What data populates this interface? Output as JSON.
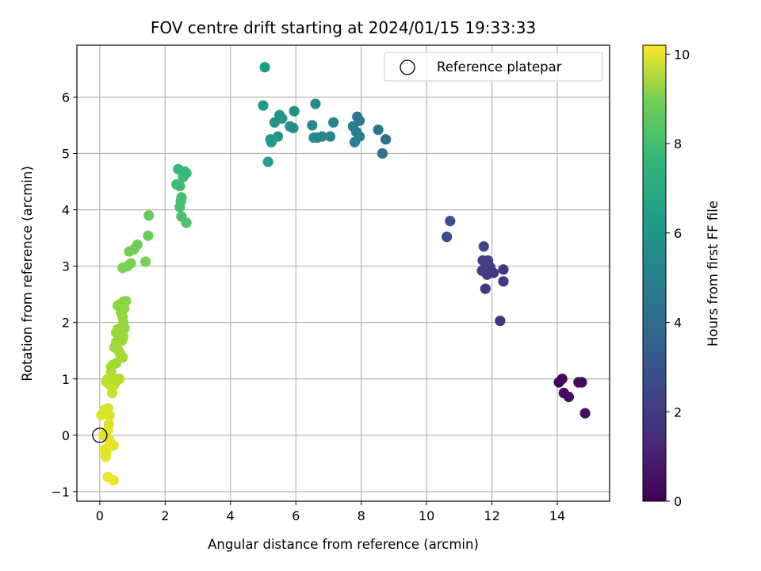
{
  "chart_data": {
    "type": "scatter",
    "title": "FOV centre drift starting at 2024/01/15 19:33:33",
    "xlabel": "Angular distance from reference (arcmin)",
    "ylabel": "Rotation from reference (arcmin)",
    "xlim": [
      -0.7,
      15.6
    ],
    "ylim": [
      -1.17,
      6.92
    ],
    "xticks": [
      0,
      2,
      4,
      6,
      8,
      10,
      12,
      14
    ],
    "yticks": [
      -1,
      0,
      1,
      2,
      3,
      4,
      5,
      6
    ],
    "grid": true,
    "legend": {
      "position": "top-right",
      "entries": [
        "Reference platepar"
      ]
    },
    "reference_point": {
      "x": 0,
      "y": 0
    },
    "colorbar": {
      "label": "Hours from first FF file",
      "range": [
        0,
        10.2
      ],
      "ticks": [
        0,
        2,
        4,
        6,
        8,
        10
      ],
      "colormap": "viridis"
    },
    "points": [
      {
        "x": 14.05,
        "y": 0.94,
        "c": 0.1
      },
      {
        "x": 14.15,
        "y": 1.0,
        "c": 0.15
      },
      {
        "x": 14.65,
        "y": 0.94,
        "c": 0.2
      },
      {
        "x": 14.75,
        "y": 0.94,
        "c": 0.25
      },
      {
        "x": 14.2,
        "y": 0.75,
        "c": 0.3
      },
      {
        "x": 14.35,
        "y": 0.68,
        "c": 0.35
      },
      {
        "x": 14.85,
        "y": 0.39,
        "c": 0.4
      },
      {
        "x": 12.25,
        "y": 2.03,
        "c": 1.5
      },
      {
        "x": 12.35,
        "y": 2.73,
        "c": 1.6
      },
      {
        "x": 12.35,
        "y": 2.94,
        "c": 1.65
      },
      {
        "x": 12.05,
        "y": 2.88,
        "c": 1.7
      },
      {
        "x": 11.8,
        "y": 2.6,
        "c": 1.75
      },
      {
        "x": 11.85,
        "y": 2.85,
        "c": 1.8
      },
      {
        "x": 11.7,
        "y": 2.92,
        "c": 1.85
      },
      {
        "x": 11.95,
        "y": 2.98,
        "c": 1.9
      },
      {
        "x": 11.8,
        "y": 3.05,
        "c": 1.95
      },
      {
        "x": 11.72,
        "y": 3.1,
        "c": 2.0
      },
      {
        "x": 11.88,
        "y": 3.1,
        "c": 2.05
      },
      {
        "x": 11.75,
        "y": 3.35,
        "c": 2.1
      },
      {
        "x": 10.62,
        "y": 3.52,
        "c": 2.3
      },
      {
        "x": 10.72,
        "y": 3.8,
        "c": 2.4
      },
      {
        "x": 8.75,
        "y": 5.25,
        "c": 3.8
      },
      {
        "x": 8.65,
        "y": 5.0,
        "c": 3.9
      },
      {
        "x": 8.52,
        "y": 5.42,
        "c": 4.0
      },
      {
        "x": 7.95,
        "y": 5.58,
        "c": 4.2
      },
      {
        "x": 7.88,
        "y": 5.65,
        "c": 4.25
      },
      {
        "x": 7.75,
        "y": 5.48,
        "c": 4.3
      },
      {
        "x": 7.85,
        "y": 5.38,
        "c": 4.35
      },
      {
        "x": 7.95,
        "y": 5.3,
        "c": 4.4
      },
      {
        "x": 7.8,
        "y": 5.2,
        "c": 4.45
      },
      {
        "x": 7.15,
        "y": 5.55,
        "c": 4.6
      },
      {
        "x": 7.05,
        "y": 5.3,
        "c": 4.65
      },
      {
        "x": 6.8,
        "y": 5.3,
        "c": 4.7
      },
      {
        "x": 6.65,
        "y": 5.28,
        "c": 4.75
      },
      {
        "x": 6.55,
        "y": 5.28,
        "c": 4.8
      },
      {
        "x": 6.5,
        "y": 5.5,
        "c": 4.85
      },
      {
        "x": 6.6,
        "y": 5.88,
        "c": 4.9
      },
      {
        "x": 5.95,
        "y": 5.75,
        "c": 5.1
      },
      {
        "x": 5.92,
        "y": 5.45,
        "c": 5.15
      },
      {
        "x": 5.82,
        "y": 5.48,
        "c": 5.2
      },
      {
        "x": 5.58,
        "y": 5.62,
        "c": 5.25
      },
      {
        "x": 5.5,
        "y": 5.68,
        "c": 5.3
      },
      {
        "x": 5.35,
        "y": 5.55,
        "c": 5.35
      },
      {
        "x": 5.45,
        "y": 5.3,
        "c": 5.4
      },
      {
        "x": 5.22,
        "y": 5.25,
        "c": 5.45
      },
      {
        "x": 5.25,
        "y": 5.2,
        "c": 5.5
      },
      {
        "x": 5.0,
        "y": 5.85,
        "c": 5.55
      },
      {
        "x": 5.05,
        "y": 6.53,
        "c": 5.6
      },
      {
        "x": 5.15,
        "y": 4.85,
        "c": 5.65
      },
      {
        "x": 2.4,
        "y": 4.72,
        "c": 6.8
      },
      {
        "x": 2.6,
        "y": 4.68,
        "c": 6.85
      },
      {
        "x": 2.65,
        "y": 4.65,
        "c": 6.9
      },
      {
        "x": 2.55,
        "y": 4.58,
        "c": 6.95
      },
      {
        "x": 2.35,
        "y": 4.45,
        "c": 7.0
      },
      {
        "x": 2.45,
        "y": 4.42,
        "c": 7.05
      },
      {
        "x": 2.5,
        "y": 4.22,
        "c": 7.1
      },
      {
        "x": 2.48,
        "y": 4.15,
        "c": 7.15
      },
      {
        "x": 2.45,
        "y": 4.05,
        "c": 7.2
      },
      {
        "x": 2.5,
        "y": 3.88,
        "c": 7.25
      },
      {
        "x": 2.65,
        "y": 3.77,
        "c": 7.3
      },
      {
        "x": 1.5,
        "y": 3.9,
        "c": 7.8
      },
      {
        "x": 1.48,
        "y": 3.54,
        "c": 7.85
      },
      {
        "x": 1.15,
        "y": 3.38,
        "c": 7.9
      },
      {
        "x": 1.05,
        "y": 3.3,
        "c": 7.95
      },
      {
        "x": 0.9,
        "y": 3.26,
        "c": 8.0
      },
      {
        "x": 1.4,
        "y": 3.08,
        "c": 8.05
      },
      {
        "x": 0.95,
        "y": 3.05,
        "c": 8.1
      },
      {
        "x": 0.85,
        "y": 3.0,
        "c": 8.15
      },
      {
        "x": 0.7,
        "y": 2.97,
        "c": 8.2
      },
      {
        "x": 0.8,
        "y": 2.38,
        "c": 8.4
      },
      {
        "x": 0.72,
        "y": 2.37,
        "c": 8.42
      },
      {
        "x": 0.6,
        "y": 2.32,
        "c": 8.44
      },
      {
        "x": 0.55,
        "y": 2.3,
        "c": 8.46
      },
      {
        "x": 0.75,
        "y": 2.25,
        "c": 8.48
      },
      {
        "x": 0.65,
        "y": 2.18,
        "c": 8.5
      },
      {
        "x": 0.7,
        "y": 2.1,
        "c": 8.52
      },
      {
        "x": 0.72,
        "y": 2.0,
        "c": 8.54
      },
      {
        "x": 0.76,
        "y": 1.9,
        "c": 8.56
      },
      {
        "x": 0.7,
        "y": 1.85,
        "c": 8.58
      },
      {
        "x": 0.55,
        "y": 1.88,
        "c": 8.6
      },
      {
        "x": 0.5,
        "y": 1.82,
        "c": 8.62
      },
      {
        "x": 0.72,
        "y": 1.75,
        "c": 8.64
      },
      {
        "x": 0.68,
        "y": 1.68,
        "c": 8.66
      },
      {
        "x": 0.6,
        "y": 1.7,
        "c": 8.68
      },
      {
        "x": 0.5,
        "y": 1.65,
        "c": 8.7
      },
      {
        "x": 0.45,
        "y": 1.56,
        "c": 8.72
      },
      {
        "x": 0.55,
        "y": 1.52,
        "c": 8.74
      },
      {
        "x": 0.62,
        "y": 1.45,
        "c": 8.76
      },
      {
        "x": 0.7,
        "y": 1.38,
        "c": 8.78
      },
      {
        "x": 0.5,
        "y": 1.28,
        "c": 8.8
      },
      {
        "x": 0.4,
        "y": 1.25,
        "c": 8.82
      },
      {
        "x": 0.35,
        "y": 1.22,
        "c": 8.84
      },
      {
        "x": 0.35,
        "y": 1.12,
        "c": 9.0
      },
      {
        "x": 0.6,
        "y": 1.0,
        "c": 9.05
      },
      {
        "x": 0.5,
        "y": 0.98,
        "c": 9.1
      },
      {
        "x": 0.4,
        "y": 1.0,
        "c": 9.15
      },
      {
        "x": 0.25,
        "y": 1.0,
        "c": 9.2
      },
      {
        "x": 0.2,
        "y": 0.95,
        "c": 9.25
      },
      {
        "x": 0.3,
        "y": 0.9,
        "c": 9.3
      },
      {
        "x": 0.45,
        "y": 0.9,
        "c": 9.35
      },
      {
        "x": 0.38,
        "y": 0.75,
        "c": 9.4
      },
      {
        "x": 0.25,
        "y": 0.48,
        "c": 9.6
      },
      {
        "x": 0.15,
        "y": 0.45,
        "c": 9.62
      },
      {
        "x": 0.05,
        "y": 0.36,
        "c": 9.64
      },
      {
        "x": 0.3,
        "y": 0.35,
        "c": 9.66
      },
      {
        "x": 0.28,
        "y": 0.2,
        "c": 9.68
      },
      {
        "x": 0.25,
        "y": 0.1,
        "c": 9.7
      },
      {
        "x": 0.2,
        "y": 0.05,
        "c": 9.72
      },
      {
        "x": 0.12,
        "y": 0.0,
        "c": 9.74
      },
      {
        "x": 0.25,
        "y": -0.05,
        "c": 9.76
      },
      {
        "x": 0.3,
        "y": -0.1,
        "c": 9.78
      },
      {
        "x": 0.42,
        "y": -0.18,
        "c": 9.8
      },
      {
        "x": 0.15,
        "y": -0.25,
        "c": 9.82
      },
      {
        "x": 0.2,
        "y": -0.3,
        "c": 9.84
      },
      {
        "x": 0.18,
        "y": -0.38,
        "c": 9.86
      },
      {
        "x": 0.25,
        "y": -0.74,
        "c": 9.9
      },
      {
        "x": 0.42,
        "y": -0.8,
        "c": 9.95
      }
    ]
  }
}
